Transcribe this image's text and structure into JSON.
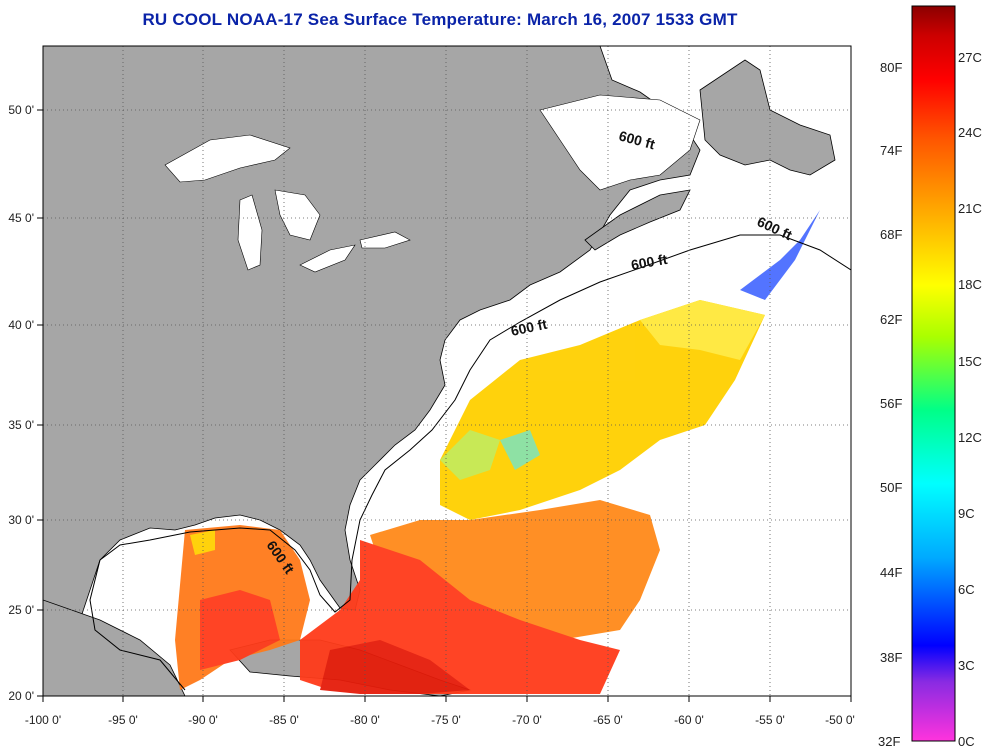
{
  "title": "RU COOL  NOAA-17  Sea Surface Temperature:  March 16, 2007 1533 GMT",
  "map": {
    "lon_ticks": [
      "-100 0'",
      "-95 0'",
      "-90 0'",
      "-85 0'",
      "-80 0'",
      "-75 0'",
      "-70 0'",
      "-65 0'",
      "-60 0'",
      "-55 0'",
      "-50 0'"
    ],
    "lat_ticks": [
      "50 0'",
      "45 0'",
      "40 0'",
      "35 0'",
      "30 0'",
      "25 0'",
      "20 0'"
    ],
    "contour_labels": [
      "600 ft",
      "600 ft",
      "600 ft",
      "600 ft",
      "600 ft"
    ],
    "colors": {
      "land": "#a6a6a6",
      "ocean_cloud": "#ffffff",
      "grid": "#555555"
    }
  },
  "colorbar": {
    "fahrenheit": [
      "80F",
      "74F",
      "68F",
      "62F",
      "56F",
      "50F",
      "44F",
      "38F",
      "32F"
    ],
    "celsius": [
      "27C",
      "24C",
      "21C",
      "18C",
      "15C",
      "12C",
      "9C",
      "6C",
      "3C",
      "0C"
    ],
    "gradient_stops": [
      "#ff33dd",
      "#8a2be2",
      "#0000ff",
      "#00aaff",
      "#00ffff",
      "#00ff88",
      "#aaff00",
      "#ffff00",
      "#ffaa00",
      "#ff5500",
      "#ff0000",
      "#cc0000",
      "#8b0000"
    ]
  }
}
